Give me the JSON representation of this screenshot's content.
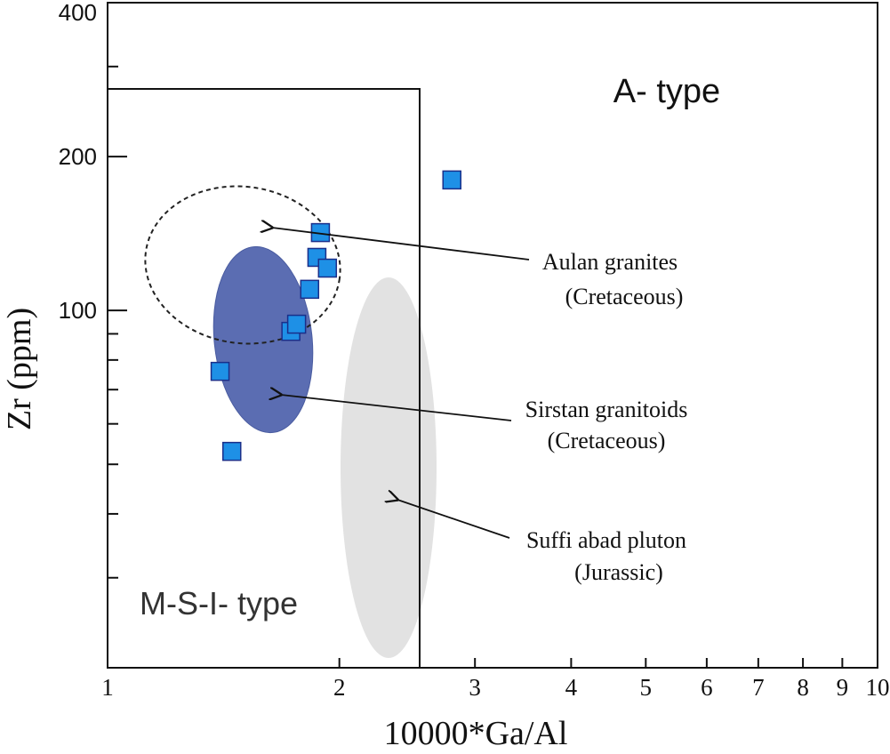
{
  "chart_data": {
    "type": "scatter",
    "title": "",
    "xlabel": "10000*Ga/Al",
    "ylabel": "Zr (ppm)",
    "x_scale": "log",
    "y_scale": "log",
    "xlim": [
      1,
      10
    ],
    "ylim": [
      20,
      400
    ],
    "x_ticks": [
      {
        "value": 1,
        "label": "1"
      },
      {
        "value": 2,
        "label": "2"
      },
      {
        "value": 3,
        "label": "3"
      },
      {
        "value": 4,
        "label": "4"
      },
      {
        "value": 5,
        "label": "5"
      },
      {
        "value": 6,
        "label": "6"
      },
      {
        "value": 7,
        "label": "7"
      },
      {
        "value": 8,
        "label": "8"
      },
      {
        "value": 9,
        "label": "9"
      },
      {
        "value": 10,
        "label": "10"
      }
    ],
    "y_ticks": [
      {
        "value": 20,
        "label": ""
      },
      {
        "value": 30,
        "label": ""
      },
      {
        "value": 40,
        "label": ""
      },
      {
        "value": 50,
        "label": ""
      },
      {
        "value": 60,
        "label": ""
      },
      {
        "value": 70,
        "label": ""
      },
      {
        "value": 80,
        "label": ""
      },
      {
        "value": 90,
        "label": ""
      },
      {
        "value": 100,
        "label": "100"
      },
      {
        "value": 200,
        "label": "200"
      },
      {
        "value": 300,
        "label": ""
      },
      {
        "value": 400,
        "label": "400"
      }
    ],
    "grid": false,
    "marker_color": "#1E90E6",
    "marker_edge": "#1A2F8A",
    "points": [
      {
        "x": 1.4,
        "y": 76
      },
      {
        "x": 1.45,
        "y": 53
      },
      {
        "x": 1.73,
        "y": 91
      },
      {
        "x": 1.76,
        "y": 94
      },
      {
        "x": 1.83,
        "y": 110
      },
      {
        "x": 1.87,
        "y": 127
      },
      {
        "x": 1.89,
        "y": 142
      },
      {
        "x": 1.93,
        "y": 121
      },
      {
        "x": 2.8,
        "y": 180
      }
    ],
    "regions": [
      {
        "name": "A- type",
        "label": "A- type"
      },
      {
        "name": "M-S-I- type",
        "label": "M-S-I- type",
        "x_max": 2.6,
        "y_max": 250
      }
    ],
    "fields": [
      {
        "name": "Aulan granites (Cretaceous)",
        "style": "dashed-outline",
        "color": "#222222"
      },
      {
        "name": "Sirstan granitoids (Cretaceous)",
        "style": "filled",
        "color": "#5B6DB2"
      },
      {
        "name": "Suffi abad pluton (Jurassic)",
        "style": "filled",
        "color": "#E2E2E2"
      }
    ],
    "annotations": [
      {
        "key": "aulan",
        "line1": "Aulan granites",
        "line2": "(Cretaceous)"
      },
      {
        "key": "sirstan",
        "line1": "Sirstan granitoids",
        "line2": "(Cretaceous)"
      },
      {
        "key": "suffi",
        "line1": "Suffi abad pluton",
        "line2": "(Jurassic)"
      }
    ]
  }
}
